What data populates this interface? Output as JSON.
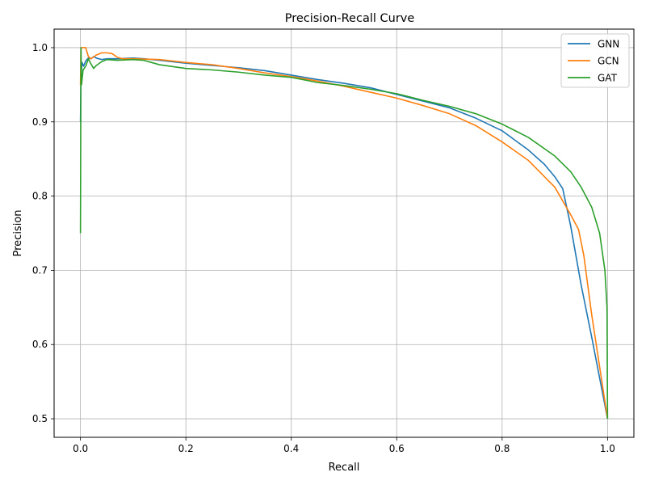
{
  "chart_data": {
    "type": "line",
    "title": "Precision-Recall Curve",
    "xlabel": "Recall",
    "ylabel": "Precision",
    "xlim": [
      -0.05,
      1.05
    ],
    "ylim": [
      0.475,
      1.025
    ],
    "xticks": [
      0.0,
      0.2,
      0.4,
      0.6,
      0.8,
      1.0
    ],
    "xtick_labels": [
      "0.0",
      "0.2",
      "0.4",
      "0.6",
      "0.8",
      "1.0"
    ],
    "yticks": [
      0.5,
      0.6,
      0.7,
      0.8,
      0.9,
      1.0
    ],
    "ytick_labels": [
      "0.5",
      "0.6",
      "0.7",
      "0.8",
      "0.9",
      "1.0"
    ],
    "grid": true,
    "legend_position": "top-right",
    "series": [
      {
        "name": "GNN",
        "color": "#1f77b4",
        "points": [
          [
            0.0,
            0.9
          ],
          [
            0.001,
            0.96
          ],
          [
            0.003,
            0.98
          ],
          [
            0.006,
            0.975
          ],
          [
            0.01,
            0.982
          ],
          [
            0.015,
            0.986
          ],
          [
            0.02,
            0.985
          ],
          [
            0.025,
            0.988
          ],
          [
            0.03,
            0.986
          ],
          [
            0.04,
            0.984
          ],
          [
            0.05,
            0.985
          ],
          [
            0.07,
            0.985
          ],
          [
            0.1,
            0.986
          ],
          [
            0.12,
            0.985
          ],
          [
            0.15,
            0.983
          ],
          [
            0.2,
            0.979
          ],
          [
            0.25,
            0.976
          ],
          [
            0.3,
            0.973
          ],
          [
            0.35,
            0.969
          ],
          [
            0.4,
            0.963
          ],
          [
            0.45,
            0.957
          ],
          [
            0.5,
            0.952
          ],
          [
            0.55,
            0.946
          ],
          [
            0.6,
            0.937
          ],
          [
            0.65,
            0.928
          ],
          [
            0.7,
            0.919
          ],
          [
            0.75,
            0.905
          ],
          [
            0.8,
            0.888
          ],
          [
            0.85,
            0.862
          ],
          [
            0.88,
            0.843
          ],
          [
            0.9,
            0.826
          ],
          [
            0.915,
            0.81
          ],
          [
            0.93,
            0.76
          ],
          [
            0.95,
            0.68
          ],
          [
            0.97,
            0.61
          ],
          [
            1.0,
            0.5
          ]
        ]
      },
      {
        "name": "GCN",
        "color": "#ff7f0e",
        "points": [
          [
            0.0,
            0.95
          ],
          [
            0.001,
            1.0
          ],
          [
            0.01,
            1.0
          ],
          [
            0.015,
            0.988
          ],
          [
            0.02,
            0.985
          ],
          [
            0.03,
            0.99
          ],
          [
            0.04,
            0.993
          ],
          [
            0.05,
            0.993
          ],
          [
            0.06,
            0.992
          ],
          [
            0.07,
            0.987
          ],
          [
            0.08,
            0.985
          ],
          [
            0.1,
            0.985
          ],
          [
            0.15,
            0.984
          ],
          [
            0.2,
            0.98
          ],
          [
            0.25,
            0.977
          ],
          [
            0.3,
            0.972
          ],
          [
            0.35,
            0.966
          ],
          [
            0.4,
            0.961
          ],
          [
            0.45,
            0.955
          ],
          [
            0.5,
            0.948
          ],
          [
            0.55,
            0.94
          ],
          [
            0.6,
            0.932
          ],
          [
            0.65,
            0.922
          ],
          [
            0.7,
            0.911
          ],
          [
            0.75,
            0.895
          ],
          [
            0.8,
            0.873
          ],
          [
            0.85,
            0.848
          ],
          [
            0.9,
            0.812
          ],
          [
            0.93,
            0.775
          ],
          [
            0.945,
            0.755
          ],
          [
            0.955,
            0.72
          ],
          [
            0.97,
            0.64
          ],
          [
            0.985,
            0.57
          ],
          [
            1.0,
            0.5
          ]
        ]
      },
      {
        "name": "GAT",
        "color": "#2ca02c",
        "points": [
          [
            0.0,
            0.75
          ],
          [
            0.001,
            1.0
          ],
          [
            0.002,
            0.95
          ],
          [
            0.005,
            0.97
          ],
          [
            0.01,
            0.975
          ],
          [
            0.015,
            0.985
          ],
          [
            0.02,
            0.978
          ],
          [
            0.025,
            0.972
          ],
          [
            0.03,
            0.976
          ],
          [
            0.04,
            0.981
          ],
          [
            0.05,
            0.984
          ],
          [
            0.07,
            0.983
          ],
          [
            0.1,
            0.984
          ],
          [
            0.12,
            0.983
          ],
          [
            0.15,
            0.977
          ],
          [
            0.2,
            0.972
          ],
          [
            0.25,
            0.97
          ],
          [
            0.3,
            0.967
          ],
          [
            0.35,
            0.963
          ],
          [
            0.4,
            0.96
          ],
          [
            0.45,
            0.953
          ],
          [
            0.5,
            0.949
          ],
          [
            0.55,
            0.944
          ],
          [
            0.6,
            0.938
          ],
          [
            0.65,
            0.929
          ],
          [
            0.7,
            0.921
          ],
          [
            0.75,
            0.911
          ],
          [
            0.8,
            0.897
          ],
          [
            0.85,
            0.879
          ],
          [
            0.9,
            0.854
          ],
          [
            0.93,
            0.833
          ],
          [
            0.95,
            0.812
          ],
          [
            0.97,
            0.785
          ],
          [
            0.985,
            0.75
          ],
          [
            0.995,
            0.7
          ],
          [
            0.999,
            0.65
          ],
          [
            1.0,
            0.5
          ]
        ]
      }
    ]
  }
}
